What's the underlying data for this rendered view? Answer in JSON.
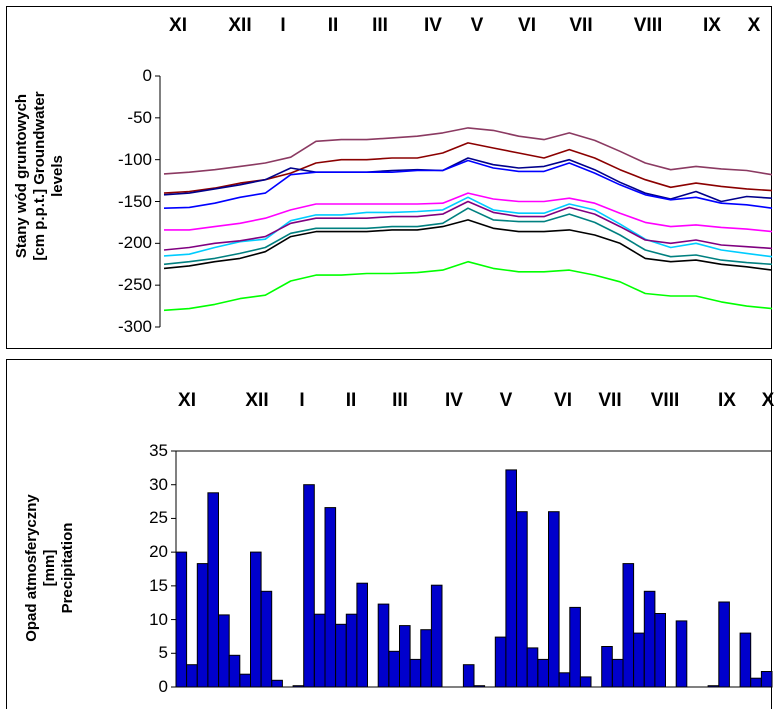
{
  "chart_data": [
    {
      "type": "line",
      "title": "",
      "ylabel_lines": [
        "Stany wód gruntowych",
        "[cm p.p.t.] Groundwater",
        "levels"
      ],
      "ylim": [
        -300,
        0
      ],
      "yticks": [
        0,
        -50,
        -100,
        -150,
        -200,
        -250,
        -300
      ],
      "months": [
        "XI",
        "XII",
        "I",
        "II",
        "III",
        "IV",
        "V",
        "VI",
        "VII",
        "VIII",
        "IX",
        "X"
      ],
      "x": [
        0,
        1,
        2,
        3,
        4,
        5,
        6,
        7,
        8,
        9,
        10,
        11,
        12,
        13,
        14,
        15,
        16,
        17,
        18,
        19,
        20,
        21,
        22,
        23,
        24
      ],
      "series": [
        {
          "color": "#8B3A62",
          "values": [
            -117,
            -115,
            -112,
            -108,
            -104,
            -97,
            -78,
            -76,
            -76,
            -74,
            -72,
            -68,
            -62,
            -65,
            -72,
            -76,
            -68,
            -77,
            -90,
            -104,
            -112,
            -108,
            -111,
            -113,
            -118
          ]
        },
        {
          "color": "#8B0000",
          "values": [
            -140,
            -138,
            -134,
            -128,
            -124,
            -116,
            -104,
            -100,
            -100,
            -98,
            -98,
            -92,
            -80,
            -86,
            -92,
            -98,
            -88,
            -98,
            -112,
            -124,
            -133,
            -128,
            -132,
            -135,
            -137
          ]
        },
        {
          "color": "#00008B",
          "values": [
            -142,
            -140,
            -135,
            -130,
            -124,
            -110,
            -115,
            -115,
            -115,
            -113,
            -112,
            -113,
            -98,
            -106,
            -110,
            -108,
            -100,
            -112,
            -127,
            -140,
            -147,
            -138,
            -150,
            -144,
            -146
          ]
        },
        {
          "color": "#0000FF",
          "values": [
            -158,
            -157,
            -152,
            -145,
            -140,
            -118,
            -115,
            -115,
            -115,
            -115,
            -113,
            -113,
            -101,
            -110,
            -114,
            -114,
            -104,
            -116,
            -130,
            -142,
            -148,
            -145,
            -152,
            -154,
            -158
          ]
        },
        {
          "color": "#FF00FF",
          "values": [
            -184,
            -184,
            -180,
            -176,
            -170,
            -160,
            -153,
            -153,
            -153,
            -153,
            -153,
            -152,
            -140,
            -147,
            -150,
            -150,
            -146,
            -152,
            -164,
            -175,
            -180,
            -178,
            -181,
            -183,
            -186
          ]
        },
        {
          "color": "#00CCFF",
          "values": [
            -215,
            -213,
            -205,
            -198,
            -195,
            -173,
            -166,
            -166,
            -163,
            -163,
            -162,
            -160,
            -145,
            -160,
            -164,
            -164,
            -153,
            -160,
            -177,
            -195,
            -205,
            -200,
            -208,
            -212,
            -216
          ]
        },
        {
          "color": "#800080",
          "values": [
            -208,
            -205,
            -200,
            -197,
            -192,
            -176,
            -170,
            -170,
            -170,
            -168,
            -168,
            -165,
            -150,
            -163,
            -168,
            -168,
            -157,
            -165,
            -180,
            -196,
            -200,
            -196,
            -202,
            -204,
            -206
          ]
        },
        {
          "color": "#008080",
          "values": [
            -225,
            -222,
            -218,
            -212,
            -205,
            -188,
            -182,
            -182,
            -182,
            -180,
            -180,
            -176,
            -158,
            -172,
            -174,
            -174,
            -165,
            -175,
            -190,
            -208,
            -216,
            -214,
            -220,
            -223,
            -225
          ]
        },
        {
          "color": "#000000",
          "values": [
            -230,
            -227,
            -222,
            -218,
            -210,
            -192,
            -186,
            -186,
            -186,
            -184,
            -184,
            -180,
            -172,
            -182,
            -186,
            -186,
            -184,
            -190,
            -200,
            -218,
            -222,
            -220,
            -225,
            -228,
            -232
          ]
        },
        {
          "color": "#00FF00",
          "values": [
            -280,
            -278,
            -273,
            -266,
            -262,
            -245,
            -238,
            -238,
            -236,
            -236,
            -235,
            -232,
            -222,
            -230,
            -234,
            -234,
            -232,
            -238,
            -246,
            -260,
            -263,
            -263,
            -270,
            -275,
            -278
          ]
        }
      ]
    },
    {
      "type": "bar",
      "title": "",
      "ylabel_lines": [
        "Opad atmosferyczny",
        "[mm]",
        "Precipitation"
      ],
      "ylim": [
        0,
        35
      ],
      "yticks": [
        35,
        30,
        25,
        20,
        15,
        10,
        5,
        0
      ],
      "months": [
        "XI",
        "XII",
        "I",
        "II",
        "III",
        "IV",
        "V",
        "VI",
        "VII",
        "VIII",
        "IX",
        "X"
      ],
      "bar_color": "#0000CC",
      "values": [
        20.0,
        3.3,
        18.3,
        28.8,
        10.7,
        4.7,
        1.9,
        20.0,
        14.2,
        1.0,
        0,
        0.2,
        30.0,
        10.8,
        26.6,
        9.3,
        10.8,
        15.4,
        0,
        12.3,
        5.3,
        9.1,
        4.1,
        8.5,
        15.1,
        0,
        0,
        3.3,
        0.2,
        0,
        7.4,
        32.2,
        26.0,
        5.8,
        4.1,
        26.0,
        2.1,
        11.8,
        1.5,
        0,
        6.0,
        4.1,
        18.3,
        8.0,
        14.2,
        10.9,
        0,
        9.8,
        0,
        0,
        0.2,
        12.6,
        0,
        8.0,
        1.3,
        2.3
      ]
    }
  ]
}
